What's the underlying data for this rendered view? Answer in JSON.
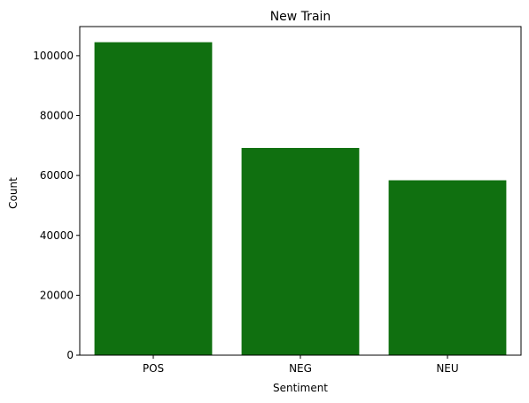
{
  "colors": {
    "bar": "#107010",
    "axis": "#000000",
    "background": "#ffffff"
  },
  "chart_data": {
    "type": "bar",
    "title": "New Train",
    "xlabel": "Sentiment",
    "ylabel": "Count",
    "categories": [
      "POS",
      "NEG",
      "NEU"
    ],
    "values": [
      104500,
      69200,
      58400
    ],
    "ylim": [
      0,
      109725
    ],
    "yticks": [
      0,
      20000,
      40000,
      60000,
      80000,
      100000
    ],
    "ytick_labels": [
      "0",
      "20000",
      "40000",
      "60000",
      "80000",
      "100000"
    ],
    "grid": false,
    "legend": "none"
  }
}
